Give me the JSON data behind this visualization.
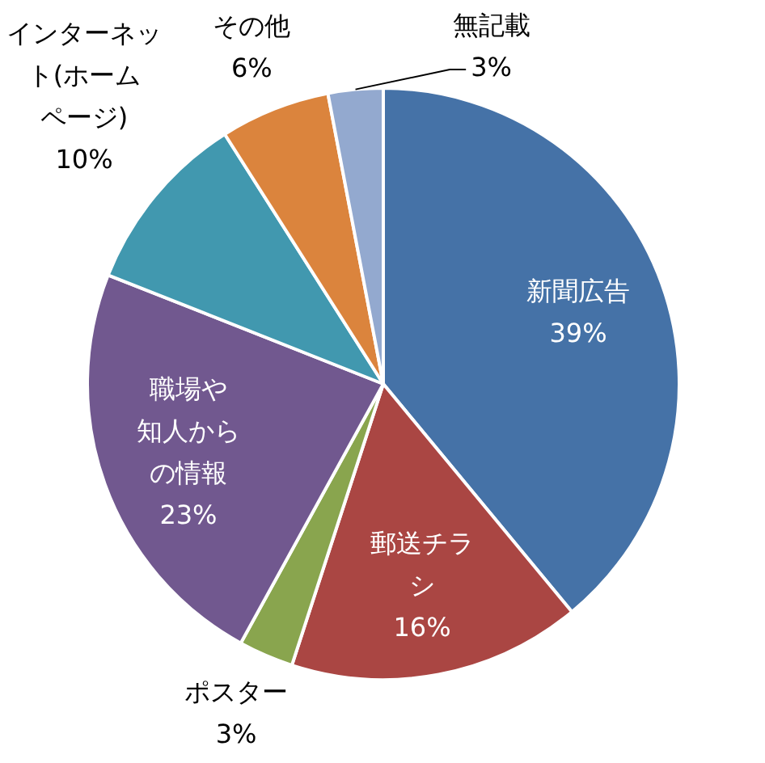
{
  "chart_data": {
    "type": "pie",
    "categories": [
      "新聞広告",
      "郵送チラシ",
      "ポスター",
      "職場や知人からの情報",
      "インターネット(ホームページ)",
      "その他",
      "無記載"
    ],
    "values": [
      39,
      16,
      3,
      23,
      10,
      6,
      3
    ],
    "value_labels": [
      "39%",
      "16%",
      "3%",
      "23%",
      "10%",
      "6%",
      "3%"
    ],
    "colors": [
      "#4572a7",
      "#aa4643",
      "#89a54e",
      "#71588f",
      "#4198af",
      "#db843d",
      "#93a9cf"
    ]
  }
}
